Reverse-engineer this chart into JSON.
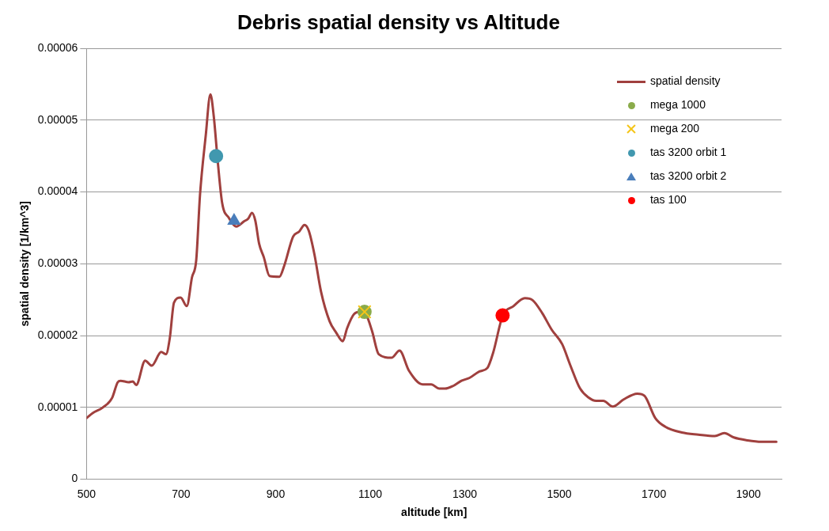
{
  "chart_data": {
    "type": "line",
    "title": "Debris spatial density vs Altitude",
    "xlabel": "altitude [km]",
    "ylabel": "spatial density [1/km^3]",
    "xlim": [
      500,
      1970
    ],
    "xticks": [
      500,
      700,
      900,
      1100,
      1300,
      1500,
      1700,
      1900
    ],
    "ylim": [
      0,
      6e-05
    ],
    "yticks": [
      0,
      {
        "value": 1e-05,
        "label": "0.00001"
      },
      {
        "value": 2e-05,
        "label": "0.00002"
      },
      {
        "value": 3e-05,
        "label": "0.00003"
      },
      {
        "value": 4e-05,
        "label": "0.00004"
      },
      {
        "value": 5e-05,
        "label": "0.00005"
      },
      {
        "value": 6e-05,
        "label": "0.00006"
      }
    ],
    "grid": "y",
    "legend": "top right",
    "series": [
      {
        "name": "spatial density",
        "type": "line",
        "color": "#a0403e",
        "marker": "none",
        "line_style": "solid",
        "x": [
          500,
          513,
          534,
          554,
          566,
          572,
          589,
          598,
          605,
          624,
          638,
          658,
          668,
          676,
          685,
          699,
          712,
          723,
          732,
          740,
          752,
          762,
          769,
          778,
          787,
          801,
          817,
          833,
          842,
          850,
          857,
          865,
          875,
          887,
          908,
          918,
          937,
          950,
          961,
          970,
          982,
          996,
          1014,
          1028,
          1042,
          1051,
          1066,
          1079,
          1092,
          1104,
          1118,
          1145,
          1162,
          1182,
          1211,
          1229,
          1246,
          1258,
          1276,
          1293,
          1310,
          1331,
          1348,
          1360,
          1380,
          1403,
          1427,
          1444,
          1464,
          1484,
          1506,
          1523,
          1544,
          1561,
          1578,
          1593,
          1613,
          1636,
          1665,
          1680,
          1703,
          1724,
          1759,
          1794,
          1829,
          1849,
          1869,
          1898,
          1927,
          1959
        ],
        "values": [
          8.5e-06,
          9.2e-06,
          9.95e-06,
          1.13e-05,
          1.35e-05,
          1.37e-05,
          1.35e-05,
          1.36e-05,
          1.31e-05,
          1.65e-05,
          1.58e-05,
          1.77e-05,
          1.74e-05,
          1.96e-05,
          2.46e-05,
          2.53e-05,
          2.41e-05,
          2.81e-05,
          3.05e-05,
          3.96e-05,
          4.78e-05,
          5.36e-05,
          5.06e-05,
          4.39e-05,
          3.84e-05,
          3.64e-05,
          3.52e-05,
          3.59e-05,
          3.63e-05,
          3.71e-05,
          3.6e-05,
          3.28e-05,
          3.09e-05,
          2.83e-05,
          2.82e-05,
          2.97e-05,
          3.38e-05,
          3.45e-05,
          3.54e-05,
          3.46e-05,
          3.13e-05,
          2.61e-05,
          2.2e-05,
          2.04e-05,
          1.92e-05,
          2.1e-05,
          2.3e-05,
          2.33e-05,
          2.28e-05,
          2.06e-05,
          1.74e-05,
          1.69e-05,
          1.79e-05,
          1.51e-05,
          1.32e-05,
          1.32e-05,
          1.26e-05,
          1.26e-05,
          1.3e-05,
          1.37e-05,
          1.41e-05,
          1.5e-05,
          1.55e-05,
          1.76e-05,
          2.27e-05,
          2.41e-05,
          2.52e-05,
          2.49e-05,
          2.31e-05,
          2.08e-05,
          1.88e-05,
          1.59e-05,
          1.26e-05,
          1.14e-05,
          1.09e-05,
          1.09e-05,
          1.01e-05,
          1.11e-05,
          1.19e-05,
          1.16e-05,
          8.5e-06,
          7.3e-06,
          6.5e-06,
          6.2e-06,
          6e-06,
          6.4e-06,
          5.8e-06,
          5.4e-06,
          5.2e-06,
          5.2e-06
        ]
      },
      {
        "name": "mega 1000",
        "type": "scatter",
        "color": "#8aab4a",
        "marker": "circle",
        "x": [
          1088
        ],
        "values": [
          2.33e-05
        ]
      },
      {
        "name": "mega 200",
        "type": "scatter",
        "color": "#f5c518",
        "marker": "cross",
        "x": [
          1088
        ],
        "values": [
          2.33e-05
        ]
      },
      {
        "name": "tas 3200 orbit 1",
        "type": "scatter",
        "color": "#4198af",
        "marker": "circle",
        "x": [
          774
        ],
        "values": [
          4.5e-05
        ]
      },
      {
        "name": "tas 3200 orbit 2",
        "type": "scatter",
        "color": "#4a7ebb",
        "marker": "triangle",
        "x": [
          812
        ],
        "values": [
          3.6e-05
        ]
      },
      {
        "name": "tas 100",
        "type": "scatter",
        "color": "#ff0000",
        "marker": "circle",
        "x": [
          1380
        ],
        "values": [
          2.28e-05
        ]
      }
    ]
  }
}
